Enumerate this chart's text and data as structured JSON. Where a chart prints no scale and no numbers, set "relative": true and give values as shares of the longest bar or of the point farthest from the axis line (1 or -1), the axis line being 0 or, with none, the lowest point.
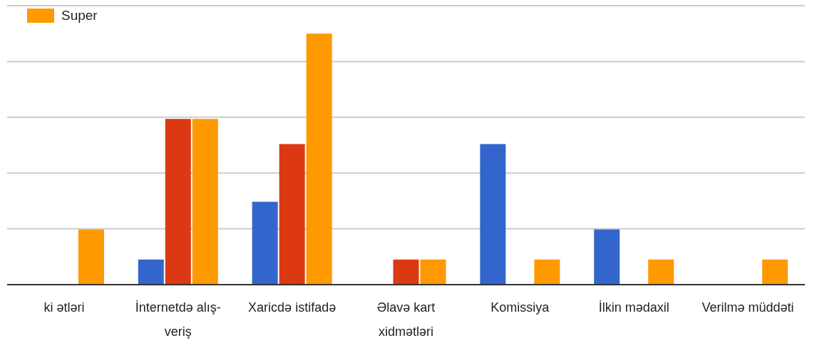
{
  "chart_data": {
    "type": "bar",
    "relative": true,
    "grid": true,
    "legend": "top left",
    "categories": [
      "ki ətləri",
      "İnternetdə alış-veriş",
      "Xaricdə istifadə",
      "Əlavə kart xidmətləri",
      "Komissiya",
      "İlkin mədaxil",
      "Verilmə müddəti"
    ],
    "series": [
      {
        "color": "#3366cc",
        "values": [
          0,
          0.1,
          0.33,
          0,
          0.56,
          0.22,
          0
        ]
      },
      {
        "color": "#dc3912",
        "values": [
          0,
          0.66,
          0.56,
          0.1,
          0,
          0,
          0
        ]
      },
      {
        "name": "Super",
        "color": "#ff9900",
        "values": [
          0.22,
          0.66,
          1,
          0.1,
          0.1,
          0.1,
          0.1
        ]
      }
    ]
  }
}
